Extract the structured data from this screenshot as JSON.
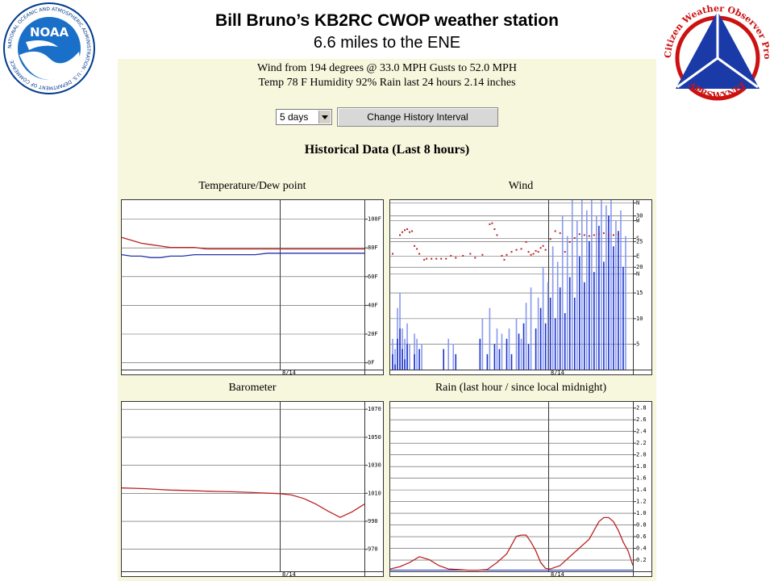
{
  "header": {
    "title": "Bill Bruno’s KB2RC CWOP weather station",
    "subtitle": "6.6 miles to the ENE"
  },
  "logos": {
    "noaa_text": "NOAA",
    "noaa_ring_text": "NATIONAL OCEANIC AND ATMOSPHERIC ADMINISTRATION · U.S. DEPARTMENT OF COMMERCE",
    "cwop_ring_text": "Citizen Weather Observer Program",
    "cwop_bottom_text": "APRSWXNET"
  },
  "station": {
    "status_line1": "Wind from 194 degrees @ 33.0 MPH Gusts to 52.0 MPH",
    "status_line2": "Temp 78 F Humidity 92% Rain last 24 hours 2.14 inches",
    "interval_value": "5 days",
    "change_button_label": "Change History Interval",
    "history_title": "Historical Data (Last 8 hours)"
  },
  "colors": {
    "temperature": "#bb2222",
    "dewpoint": "#2233aa",
    "wind_dir": "#bb2222",
    "wind_speed": "#1a33cc",
    "wind_gust": "#8899ee",
    "barometer": "#bb2222",
    "rain": "#bb2222"
  },
  "chart_data": [
    {
      "type": "line",
      "title": "Temperature/Dew point",
      "x_tick_label": "8/14",
      "y_ticks": [
        "100F",
        "80F",
        "60F",
        "40F",
        "20F",
        "0F"
      ],
      "y_tick_values": [
        100,
        80,
        60,
        40,
        20,
        0
      ],
      "ylim": [
        -5,
        113
      ],
      "x": [
        0,
        4,
        8,
        12,
        16,
        20,
        25,
        30,
        35,
        40,
        45,
        50,
        55,
        60,
        65,
        70,
        75,
        80,
        85,
        90,
        95,
        100
      ],
      "series": [
        {
          "key": "temperature",
          "values": [
            87,
            85,
            83,
            82,
            81,
            80,
            80,
            80,
            79,
            79,
            79,
            79,
            79,
            79,
            79,
            79,
            79,
            79,
            79,
            79,
            79,
            79
          ]
        },
        {
          "key": "dewpoint",
          "values": [
            75,
            74,
            74,
            73,
            73,
            74,
            74,
            75,
            75,
            75,
            75,
            75,
            75,
            76,
            76,
            76,
            76,
            76,
            76,
            76,
            76,
            76
          ]
        }
      ]
    },
    {
      "type": "bar",
      "title": "Wind",
      "x_tick_label": "8/14",
      "y_ticks": [
        "30",
        "25",
        "20",
        "15",
        "10",
        "5"
      ],
      "y_tick_values": [
        30,
        25,
        20,
        15,
        10,
        5
      ],
      "dir_ticks": [
        "N",
        "W",
        "S",
        "E",
        "N"
      ],
      "dir_tick_values": [
        360,
        270,
        180,
        90,
        0
      ],
      "speed_lim": [
        0,
        33
      ],
      "dir_lim": [
        0,
        360
      ],
      "direction_points": [
        {
          "x": 1,
          "d": 100
        },
        {
          "x": 4,
          "d": 195
        },
        {
          "x": 5,
          "d": 210
        },
        {
          "x": 6,
          "d": 220
        },
        {
          "x": 7,
          "d": 225
        },
        {
          "x": 8,
          "d": 210
        },
        {
          "x": 9,
          "d": 215
        },
        {
          "x": 10,
          "d": 140
        },
        {
          "x": 11,
          "d": 125
        },
        {
          "x": 12,
          "d": 100
        },
        {
          "x": 14,
          "d": 70
        },
        {
          "x": 15,
          "d": 75
        },
        {
          "x": 17,
          "d": 75
        },
        {
          "x": 19,
          "d": 75
        },
        {
          "x": 21,
          "d": 75
        },
        {
          "x": 23,
          "d": 75
        },
        {
          "x": 25,
          "d": 90
        },
        {
          "x": 27,
          "d": 80
        },
        {
          "x": 30,
          "d": 90
        },
        {
          "x": 33,
          "d": 100
        },
        {
          "x": 35,
          "d": 80
        },
        {
          "x": 38,
          "d": 95
        },
        {
          "x": 41,
          "d": 250
        },
        {
          "x": 42,
          "d": 255
        },
        {
          "x": 43,
          "d": 225
        },
        {
          "x": 44,
          "d": 195
        },
        {
          "x": 46,
          "d": 90
        },
        {
          "x": 47,
          "d": 70
        },
        {
          "x": 48,
          "d": 95
        },
        {
          "x": 50,
          "d": 110
        },
        {
          "x": 52,
          "d": 120
        },
        {
          "x": 54,
          "d": 125
        },
        {
          "x": 56,
          "d": 160
        },
        {
          "x": 57,
          "d": 110
        },
        {
          "x": 58,
          "d": 95
        },
        {
          "x": 59,
          "d": 100
        },
        {
          "x": 60,
          "d": 115
        },
        {
          "x": 61,
          "d": 110
        },
        {
          "x": 62,
          "d": 130
        },
        {
          "x": 63,
          "d": 140
        },
        {
          "x": 64,
          "d": 120
        },
        {
          "x": 66,
          "d": 175
        },
        {
          "x": 68,
          "d": 215
        },
        {
          "x": 70,
          "d": 205
        },
        {
          "x": 72,
          "d": 110
        },
        {
          "x": 74,
          "d": 160
        },
        {
          "x": 76,
          "d": 180
        },
        {
          "x": 78,
          "d": 200
        },
        {
          "x": 80,
          "d": 195
        },
        {
          "x": 82,
          "d": 190
        },
        {
          "x": 84,
          "d": 195
        },
        {
          "x": 86,
          "d": 200
        },
        {
          "x": 88,
          "d": 205
        },
        {
          "x": 90,
          "d": 195
        },
        {
          "x": 92,
          "d": 195
        },
        {
          "x": 94,
          "d": 200
        }
      ],
      "speed_bars": [
        {
          "x": 1,
          "s": 3
        },
        {
          "x": 2,
          "s": 1
        },
        {
          "x": 3,
          "s": 6
        },
        {
          "x": 4,
          "s": 8
        },
        {
          "x": 5,
          "s": 4
        },
        {
          "x": 6,
          "s": 2
        },
        {
          "x": 7,
          "s": 5
        },
        {
          "x": 10,
          "s": 3
        },
        {
          "x": 12,
          "s": 4
        },
        {
          "x": 22,
          "s": 4
        },
        {
          "x": 27,
          "s": 3
        },
        {
          "x": 37,
          "s": 6
        },
        {
          "x": 40,
          "s": 3
        },
        {
          "x": 43,
          "s": 5
        },
        {
          "x": 45,
          "s": 4
        },
        {
          "x": 48,
          "s": 6
        },
        {
          "x": 50,
          "s": 3
        },
        {
          "x": 53,
          "s": 7
        },
        {
          "x": 55,
          "s": 9
        },
        {
          "x": 57,
          "s": 5
        },
        {
          "x": 60,
          "s": 8
        },
        {
          "x": 62,
          "s": 12
        },
        {
          "x": 64,
          "s": 9
        },
        {
          "x": 66,
          "s": 14
        },
        {
          "x": 68,
          "s": 10
        },
        {
          "x": 70,
          "s": 16
        },
        {
          "x": 72,
          "s": 11
        },
        {
          "x": 74,
          "s": 18
        },
        {
          "x": 76,
          "s": 14
        },
        {
          "x": 78,
          "s": 22
        },
        {
          "x": 80,
          "s": 17
        },
        {
          "x": 82,
          "s": 25
        },
        {
          "x": 84,
          "s": 19
        },
        {
          "x": 86,
          "s": 28
        },
        {
          "x": 88,
          "s": 21
        },
        {
          "x": 90,
          "s": 30
        },
        {
          "x": 92,
          "s": 24
        },
        {
          "x": 94,
          "s": 27
        },
        {
          "x": 96,
          "s": 20
        }
      ],
      "gust_bars": [
        {
          "x": 1,
          "s": 6
        },
        {
          "x": 2,
          "s": 4
        },
        {
          "x": 3,
          "s": 12
        },
        {
          "x": 4,
          "s": 15
        },
        {
          "x": 5,
          "s": 8
        },
        {
          "x": 6,
          "s": 6
        },
        {
          "x": 7,
          "s": 9
        },
        {
          "x": 8,
          "s": 5
        },
        {
          "x": 10,
          "s": 7
        },
        {
          "x": 11,
          "s": 6
        },
        {
          "x": 13,
          "s": 5
        },
        {
          "x": 24,
          "s": 6
        },
        {
          "x": 26,
          "s": 5
        },
        {
          "x": 38,
          "s": 10
        },
        {
          "x": 41,
          "s": 12
        },
        {
          "x": 44,
          "s": 8
        },
        {
          "x": 46,
          "s": 7
        },
        {
          "x": 49,
          "s": 8
        },
        {
          "x": 52,
          "s": 10
        },
        {
          "x": 54,
          "s": 6
        },
        {
          "x": 56,
          "s": 13
        },
        {
          "x": 58,
          "s": 16
        },
        {
          "x": 61,
          "s": 14
        },
        {
          "x": 63,
          "s": 20
        },
        {
          "x": 65,
          "s": 17
        },
        {
          "x": 67,
          "s": 24
        },
        {
          "x": 69,
          "s": 21
        },
        {
          "x": 71,
          "s": 30
        },
        {
          "x": 73,
          "s": 26
        },
        {
          "x": 75,
          "s": 33
        },
        {
          "x": 77,
          "s": 29
        },
        {
          "x": 79,
          "s": 33
        },
        {
          "x": 81,
          "s": 31
        },
        {
          "x": 83,
          "s": 33
        },
        {
          "x": 85,
          "s": 30
        },
        {
          "x": 87,
          "s": 33
        },
        {
          "x": 89,
          "s": 32
        },
        {
          "x": 91,
          "s": 33
        },
        {
          "x": 93,
          "s": 29
        },
        {
          "x": 95,
          "s": 31
        },
        {
          "x": 97,
          "s": 26
        }
      ]
    },
    {
      "type": "line",
      "title": "Barometer",
      "x_tick_label": "8/14",
      "y_ticks": [
        "1070",
        "1050",
        "1030",
        "1010",
        "990",
        "970"
      ],
      "y_tick_values": [
        1070,
        1050,
        1030,
        1010,
        990,
        970
      ],
      "ylim": [
        954,
        1075
      ],
      "x": [
        0,
        5,
        10,
        15,
        20,
        25,
        30,
        35,
        40,
        45,
        50,
        55,
        60,
        65,
        70,
        75,
        80,
        85,
        90,
        95,
        100
      ],
      "series": [
        {
          "key": "barometer",
          "values": [
            1013.5,
            1013.3,
            1013,
            1012.5,
            1012,
            1011.8,
            1011.5,
            1011.2,
            1011,
            1010.8,
            1010.5,
            1010.2,
            1009.8,
            1009.5,
            1008.5,
            1006,
            1002,
            997,
            992.5,
            996.5,
            1002
          ]
        }
      ]
    },
    {
      "type": "area",
      "title": "Rain (last hour / since local midnight)",
      "x_tick_label": "8/14",
      "y_ticks": [
        "2.8",
        "2.6",
        "2.4",
        "2.2",
        "2.0",
        "1.8",
        "1.6",
        "1.4",
        "1.2",
        "1.0",
        "0.8",
        "0.6",
        "0.4",
        "0.2"
      ],
      "y_tick_values": [
        2.8,
        2.6,
        2.4,
        2.2,
        2.0,
        1.8,
        1.6,
        1.4,
        1.2,
        1.0,
        0.8,
        0.6,
        0.4,
        0.2
      ],
      "ylim": [
        0,
        2.9
      ],
      "x": [
        0,
        4,
        8,
        12,
        16,
        20,
        24,
        28,
        32,
        36,
        40,
        44,
        48,
        50,
        52,
        54,
        56,
        58,
        60,
        62,
        64,
        66,
        70,
        74,
        78,
        82,
        84,
        86,
        88,
        90,
        92,
        94,
        96,
        98,
        100
      ],
      "series": [
        {
          "key": "rain",
          "values": [
            0.04,
            0.08,
            0.15,
            0.25,
            0.2,
            0.1,
            0.04,
            0.03,
            0.02,
            0.02,
            0.03,
            0.15,
            0.3,
            0.45,
            0.6,
            0.62,
            0.62,
            0.5,
            0.35,
            0.15,
            0.05,
            0.04,
            0.1,
            0.25,
            0.4,
            0.55,
            0.7,
            0.85,
            0.92,
            0.92,
            0.85,
            0.7,
            0.5,
            0.35,
            0.1
          ]
        }
      ]
    }
  ]
}
